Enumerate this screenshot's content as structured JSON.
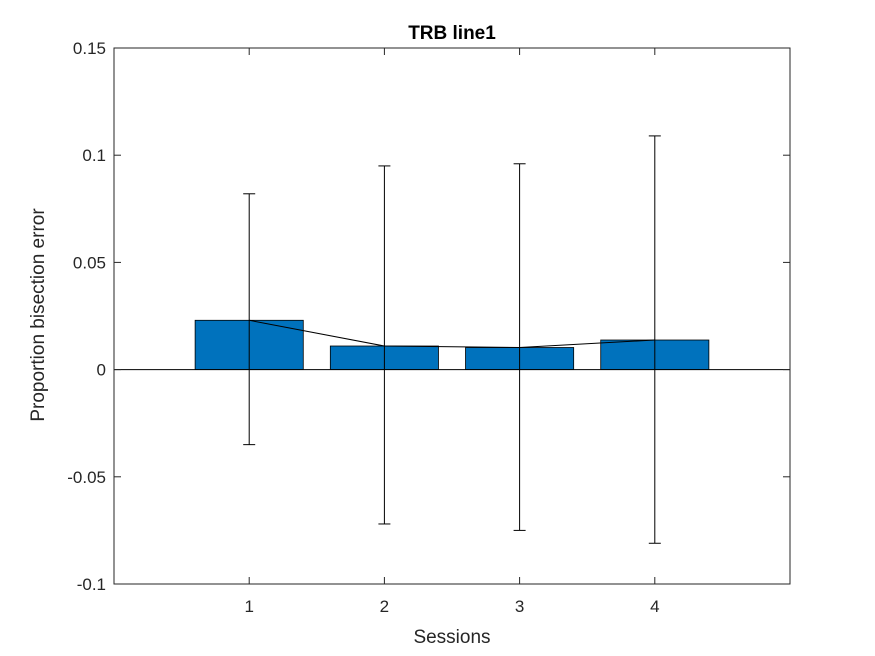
{
  "chart_data": {
    "type": "bar",
    "title": "TRB line1",
    "xlabel": "Sessions",
    "ylabel": "Proportion bisection error",
    "categories": [
      "1",
      "2",
      "3",
      "4"
    ],
    "values": [
      0.023,
      0.011,
      0.0103,
      0.0138
    ],
    "error_bars": {
      "upper": [
        0.082,
        0.095,
        0.096,
        0.109
      ],
      "lower": [
        -0.035,
        -0.072,
        -0.075,
        -0.081
      ]
    },
    "xlim": [
      0,
      5
    ],
    "ylim": [
      -0.1,
      0.15
    ],
    "yticks": [
      -0.1,
      -0.05,
      0,
      0.05,
      0.1,
      0.15
    ],
    "ytick_labels": [
      "-0.1",
      "-0.05",
      "0",
      "0.05",
      "0.1",
      "0.15"
    ],
    "overlay": "line connecting bar tops",
    "zero_line": true,
    "grid": false,
    "legend": "none",
    "colors": {
      "bar_fill": "#0072BD",
      "bar_edge": "#000000",
      "axis": "#262626",
      "error_bar": "#000000"
    }
  }
}
